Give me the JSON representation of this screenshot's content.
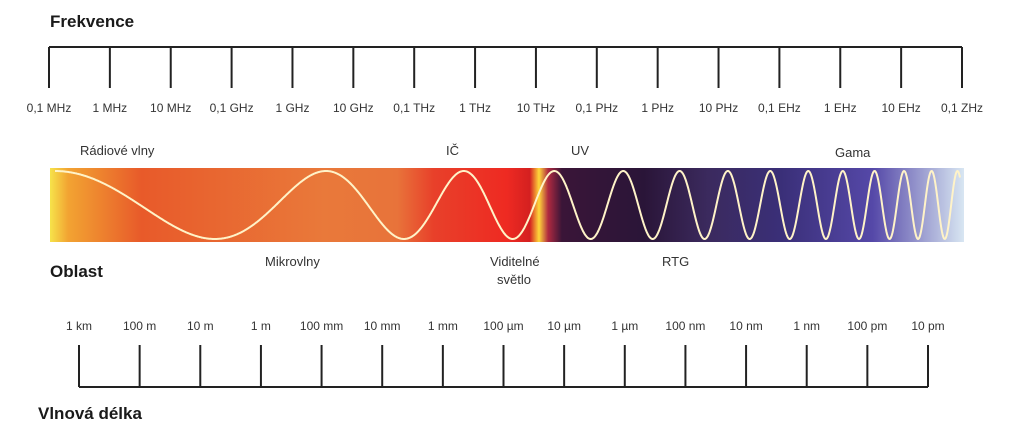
{
  "frequency": {
    "title": "Frekvence",
    "ticks": [
      "0,1 MHz",
      "1 MHz",
      "10 MHz",
      "0,1 GHz",
      "1 GHz",
      "10 GHz",
      "0,1 THz",
      "1 THz",
      "10 THz",
      "0,1 PHz",
      "1 PHz",
      "10 PHz",
      "0,1 EHz",
      "1 EHz",
      "10 EHz",
      "0,1 ZHz"
    ]
  },
  "regions": {
    "title": "Oblast",
    "above": {
      "radio": "Rádiové vlny",
      "ir": "IČ",
      "uv": "UV",
      "gamma": "Gama"
    },
    "below": {
      "micro": "Mikrovlny",
      "visible_1": "Viditelné",
      "visible_2": "světlo",
      "xray": "RTG"
    }
  },
  "wavelength": {
    "title": "Vlnová délka",
    "ticks": [
      "1 km",
      "100 m",
      "10 m",
      "1 m",
      "100 mm",
      "10 mm",
      "1 mm",
      "100 µm",
      "10 µm",
      "1 µm",
      "100 nm",
      "10 nm",
      "1 nm",
      "100 pm",
      "10 pm"
    ]
  }
}
